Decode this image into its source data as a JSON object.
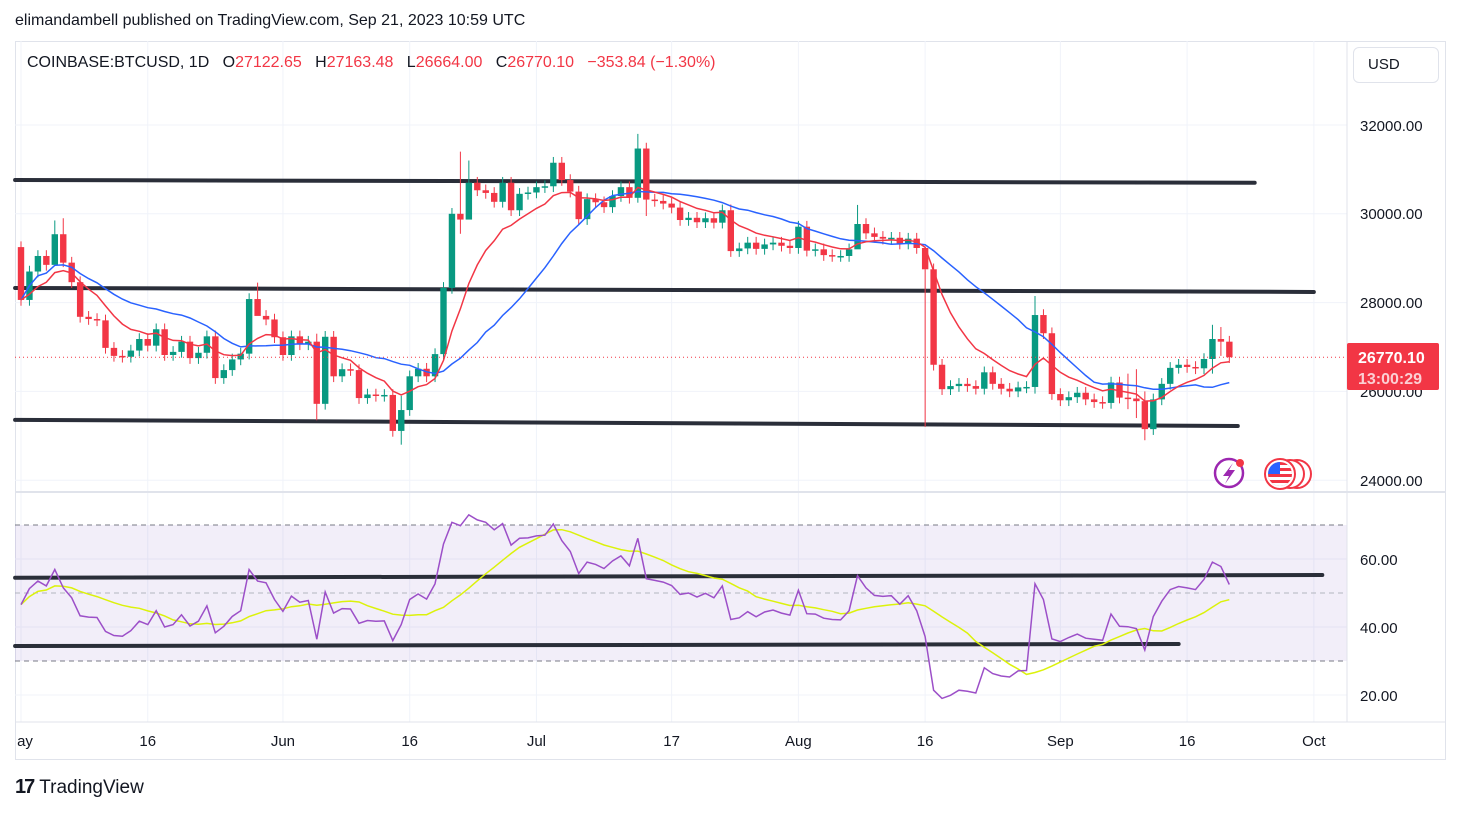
{
  "publish_line": "elimandambell published on TradingView.com, Sep 21, 2023 10:59 UTC",
  "legend": {
    "symbol": "COINBASE:BTCUSD, 1D",
    "o_label": "O",
    "o": "27122.65",
    "h_label": "H",
    "h": "27163.48",
    "l_label": "L",
    "l": "26664.00",
    "c_label": "C",
    "c": "26770.10",
    "change": "−353.84 (−1.30%)"
  },
  "currency_button": "USD",
  "price_tag": {
    "price": "26770.10",
    "countdown": "13:00:29"
  },
  "footer": {
    "brand": "TradingView"
  },
  "icons": {
    "lightning": "lightning-icon",
    "flags": "us-flag-icon"
  },
  "colors": {
    "up": "#089981",
    "down": "#f23645",
    "ema": "#f23645",
    "sma": "#2962ff",
    "rsi": "#9c4fc8",
    "rsi_ma": "#dcf20b",
    "drawing": "#2a2e39"
  },
  "chart_data": [
    {
      "type": "candlestick",
      "title": "COINBASE:BTCUSD, 1D",
      "start_date": "May 1, 2023",
      "first_open": 29250,
      "close": [
        28060,
        28700,
        29050,
        28850,
        29540,
        28900,
        28460,
        27680,
        27630,
        27600,
        26980,
        26800,
        26780,
        26920,
        27180,
        27030,
        27400,
        26820,
        26890,
        27120,
        26750,
        26870,
        27240,
        26300,
        26480,
        26720,
        26850,
        28080,
        27700,
        27620,
        27220,
        26820,
        27240,
        27060,
        27120,
        25720,
        27230,
        26340,
        26500,
        26480,
        25850,
        25930,
        25900,
        25920,
        25110,
        25580,
        26340,
        26510,
        26340,
        26840,
        28330,
        30000,
        29870,
        30700,
        30530,
        30470,
        30270,
        30700,
        30080,
        30450,
        30480,
        30600,
        30620,
        31150,
        30760,
        30500,
        29880,
        30330,
        30260,
        30150,
        30400,
        30600,
        30360,
        31470,
        30320,
        30290,
        30230,
        30140,
        29860,
        29910,
        29810,
        29900,
        29800,
        30080,
        29160,
        29220,
        29350,
        29210,
        29310,
        29350,
        29280,
        29230,
        29710,
        29170,
        29200,
        29070,
        29050,
        29050,
        29200,
        29770,
        29560,
        29480,
        29440,
        29460,
        29330,
        29440,
        29230,
        28750,
        26600,
        26050,
        26120,
        26170,
        26120,
        26060,
        26430,
        26170,
        26060,
        26000,
        26090,
        26100,
        27720,
        27310,
        25940,
        25800,
        25870,
        25970,
        25820,
        25760,
        25740,
        26200,
        25860,
        25840,
        25780,
        25150,
        25820,
        26170,
        26530,
        26600,
        26550,
        26520,
        26730,
        27180,
        27120,
        26770
      ],
      "wick_extremes": {
        "4": [
          29850,
          29350
        ],
        "5": [
          29900,
          28800
        ],
        "28": [
          28450,
          27900
        ],
        "35": [
          27300,
          25350
        ],
        "45": [
          25900,
          24800
        ],
        "52": [
          31400,
          29550
        ],
        "53": [
          31200,
          30300
        ],
        "73": [
          31800,
          30250
        ],
        "74": [
          31600,
          29950
        ],
        "99": [
          30200,
          29450
        ],
        "107": [
          28750,
          25200
        ],
        "120": [
          28150,
          25950
        ],
        "131": [
          26400,
          25600
        ],
        "132": [
          26500,
          25400
        ],
        "133": [
          26000,
          24900
        ],
        "141": [
          27500,
          26400
        ],
        "142": [
          27450,
          26800
        ]
      },
      "ema_length": 9,
      "sma_length": 20,
      "y_ticks": [
        "32000.00",
        "30000.00",
        "28000.00",
        "26000.00",
        "24000.00"
      ],
      "ylim": [
        23500,
        33000
      ],
      "x_ticks": [
        {
          "label": "ay",
          "day": 0
        },
        {
          "label": "16",
          "day": 15
        },
        {
          "label": "Jun",
          "day": 31
        },
        {
          "label": "16",
          "day": 46
        },
        {
          "label": "Jul",
          "day": 61
        },
        {
          "label": "17",
          "day": 77
        },
        {
          "label": "Aug",
          "day": 92
        },
        {
          "label": "16",
          "day": 107
        },
        {
          "label": "Sep",
          "day": 123
        },
        {
          "label": "16",
          "day": 138
        },
        {
          "label": "Oct",
          "day": 153
        }
      ],
      "drawings": [
        {
          "from": [
            -0.7,
            30760
          ],
          "to": [
            146,
            30700
          ]
        },
        {
          "from": [
            -0.7,
            28330
          ],
          "to": [
            153,
            28240
          ]
        },
        {
          "from": [
            -0.7,
            25360
          ],
          "to": [
            144,
            25220
          ]
        }
      ]
    },
    {
      "type": "line",
      "title": "RSI",
      "rsi": [
        46.6,
        51.3,
        53.5,
        52.1,
        56.9,
        51.5,
        48.6,
        43.3,
        42.9,
        42.8,
        38.7,
        37.5,
        37.3,
        38.9,
        41.7,
        40.7,
        44.8,
        40.0,
        40.7,
        43.6,
        40.3,
        41.7,
        46.2,
        38.3,
        40.2,
        43.1,
        44.8,
        56.9,
        53.5,
        53.0,
        48.1,
        44.6,
        49.1,
        47.3,
        47.8,
        36.4,
        50.3,
        44.1,
        45.4,
        45.3,
        41.1,
        41.9,
        41.7,
        41.8,
        36.0,
        40.7,
        48.1,
        49.7,
        48.2,
        52.7,
        64.4,
        70.8,
        69.8,
        73.0,
        71.5,
        70.8,
        68.6,
        70.4,
        64.1,
        66.1,
        66.2,
        66.8,
        67.0,
        70.3,
        65.4,
        62.2,
        55.7,
        59.1,
        58.4,
        57.2,
        59.4,
        60.9,
        58.0,
        66.1,
        54.2,
        53.7,
        53.2,
        52.2,
        49.6,
        50.0,
        48.8,
        49.9,
        48.6,
        52.1,
        42.2,
        42.7,
        44.5,
        43.0,
        44.4,
        45.0,
        44.1,
        43.5,
        50.8,
        43.9,
        43.8,
        42.6,
        42.2,
        42.1,
        44.8,
        55.1,
        51.5,
        49.3,
        49.0,
        49.2,
        46.7,
        49.2,
        44.8,
        37.2,
        21.4,
        19.0,
        19.9,
        21.4,
        21.1,
        20.6,
        28.0,
        26.3,
        25.6,
        25.3,
        27.1,
        27.2,
        52.7,
        48.1,
        36.5,
        35.7,
        36.9,
        37.9,
        36.7,
        36.4,
        36.1,
        43.8,
        40.2,
        40.1,
        39.5,
        33.2,
        43.1,
        47.6,
        51.0,
        51.9,
        51.5,
        51.0,
        54.0,
        59.1,
        57.8,
        52.5
      ],
      "ma_length": 14,
      "levels": {
        "upper": 70,
        "middle": 50,
        "lower": 30
      },
      "y_ticks": [
        "60.00",
        "40.00",
        "20.00"
      ],
      "drawings": [
        {
          "from": [
            -0.7,
            54.5
          ],
          "to": [
            154,
            55.3
          ]
        },
        {
          "from": [
            -0.7,
            34.4
          ],
          "to": [
            137,
            35.0
          ]
        }
      ]
    }
  ]
}
